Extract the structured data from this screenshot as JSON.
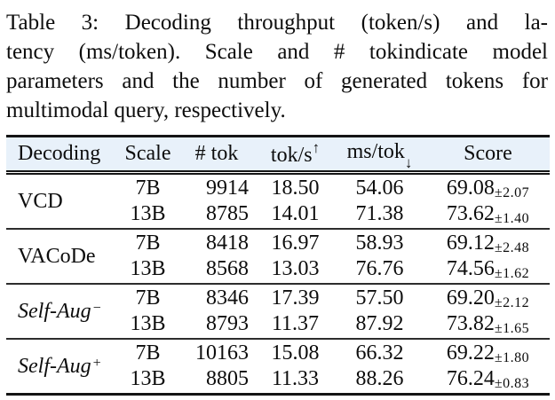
{
  "caption": {
    "label": "Table 3:",
    "lines": [
      "Table 3: Decoding throughput (token/s) and la-",
      "tency (ms/token). Scale and # tokindicate model",
      "parameters and the number of generated tokens for",
      "multimodal query, respectively."
    ]
  },
  "table": {
    "headers": [
      {
        "label": "Decoding",
        "arrow": ""
      },
      {
        "label": "Scale",
        "arrow": ""
      },
      {
        "label": "# tok",
        "arrow": ""
      },
      {
        "label": "tok/s",
        "arrow": "↑"
      },
      {
        "label": "ms/tok",
        "arrow": "↓"
      },
      {
        "label": "Score",
        "arrow": ""
      }
    ],
    "groups": [
      {
        "method": {
          "base": "VCD",
          "sup": ""
        },
        "rows": [
          {
            "scale": "7B",
            "ntok": "9914",
            "tok_s": "18.50",
            "ms_tok": "54.06",
            "score": "69.08",
            "err": "±2.07"
          },
          {
            "scale": "13B",
            "ntok": "8785",
            "tok_s": "14.01",
            "ms_tok": "71.38",
            "score": "73.62",
            "err": "±1.40"
          }
        ]
      },
      {
        "method": {
          "base": "VACoDe",
          "sup": ""
        },
        "rows": [
          {
            "scale": "7B",
            "ntok": "8418",
            "tok_s": "16.97",
            "ms_tok": "58.93",
            "score": "69.12",
            "err": "±2.48"
          },
          {
            "scale": "13B",
            "ntok": "8568",
            "tok_s": "13.03",
            "ms_tok": "76.76",
            "score": "74.56",
            "err": "±1.62"
          }
        ]
      },
      {
        "method": {
          "base": "Self-Aug",
          "sup": "−"
        },
        "rows": [
          {
            "scale": "7B",
            "ntok": "8346",
            "tok_s": "17.39",
            "ms_tok": "57.50",
            "score": "69.20",
            "err": "±2.12"
          },
          {
            "scale": "13B",
            "ntok": "8793",
            "tok_s": "11.37",
            "ms_tok": "87.92",
            "score": "73.82",
            "err": "±1.65"
          }
        ]
      },
      {
        "method": {
          "base": "Self-Aug",
          "sup": "+"
        },
        "rows": [
          {
            "scale": "7B",
            "ntok": "10163",
            "tok_s": "15.08",
            "ms_tok": "66.32",
            "score": "69.22",
            "err": "±1.80"
          },
          {
            "scale": "13B",
            "ntok": "8805",
            "tok_s": "11.33",
            "ms_tok": "88.26",
            "score": "76.24",
            "err": "±0.83"
          }
        ]
      }
    ]
  },
  "colors": {
    "header_background": "#e8f1fa",
    "rule": "#141414",
    "text": "#0d0d0d"
  }
}
